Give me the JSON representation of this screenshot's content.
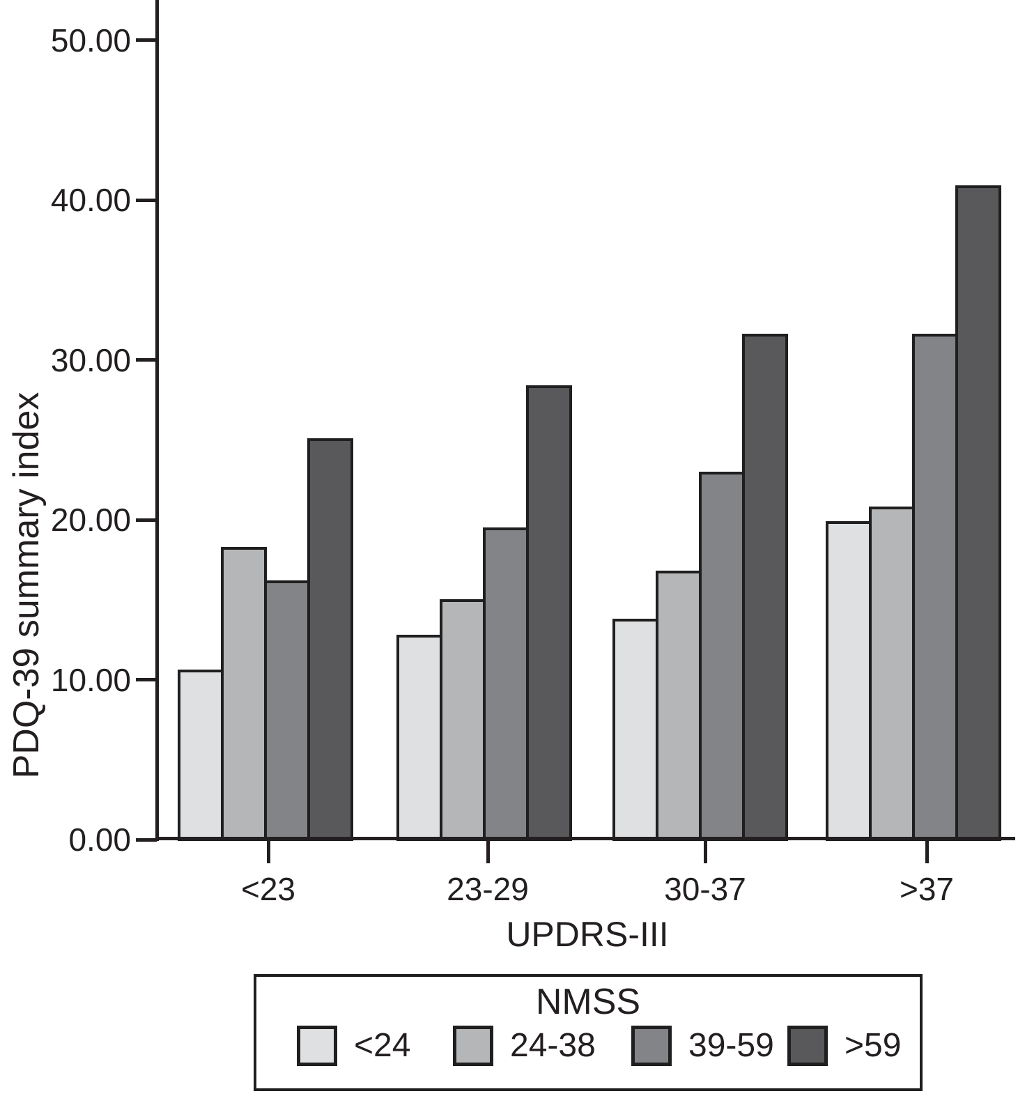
{
  "figure": {
    "background": "#ffffff",
    "axis_color": "#231f20"
  },
  "chart_data": {
    "type": "bar",
    "title": "",
    "xlabel": "UPDRS-III",
    "ylabel": "PDQ-39 summary index",
    "categories": [
      "<23",
      "23-29",
      "30-37",
      ">37"
    ],
    "series": [
      {
        "name": "<24",
        "color": "#dfe0e1",
        "values": [
          10.7,
          12.9,
          13.9,
          20.0
        ]
      },
      {
        "name": "24-38",
        "color": "#b5b6b8",
        "values": [
          18.4,
          15.1,
          16.9,
          20.9
        ]
      },
      {
        "name": "39-59",
        "color": "#828487",
        "values": [
          16.3,
          19.6,
          23.1,
          31.7
        ]
      },
      {
        "name": ">59",
        "color": "#59595b",
        "values": [
          25.2,
          28.5,
          31.7,
          41.0
        ]
      }
    ],
    "ylim": [
      0,
      50
    ],
    "ytick_step": 10,
    "ytick_labels": [
      "0.00",
      "10.00",
      "20.00",
      "30.00",
      "40.00",
      "50.00"
    ],
    "grid": false,
    "bar_border_color": "#1f1f1f",
    "legend": {
      "title": "NMSS",
      "position": "bottom",
      "entries": [
        "<24",
        "24-38",
        "39-59",
        ">59"
      ]
    }
  }
}
